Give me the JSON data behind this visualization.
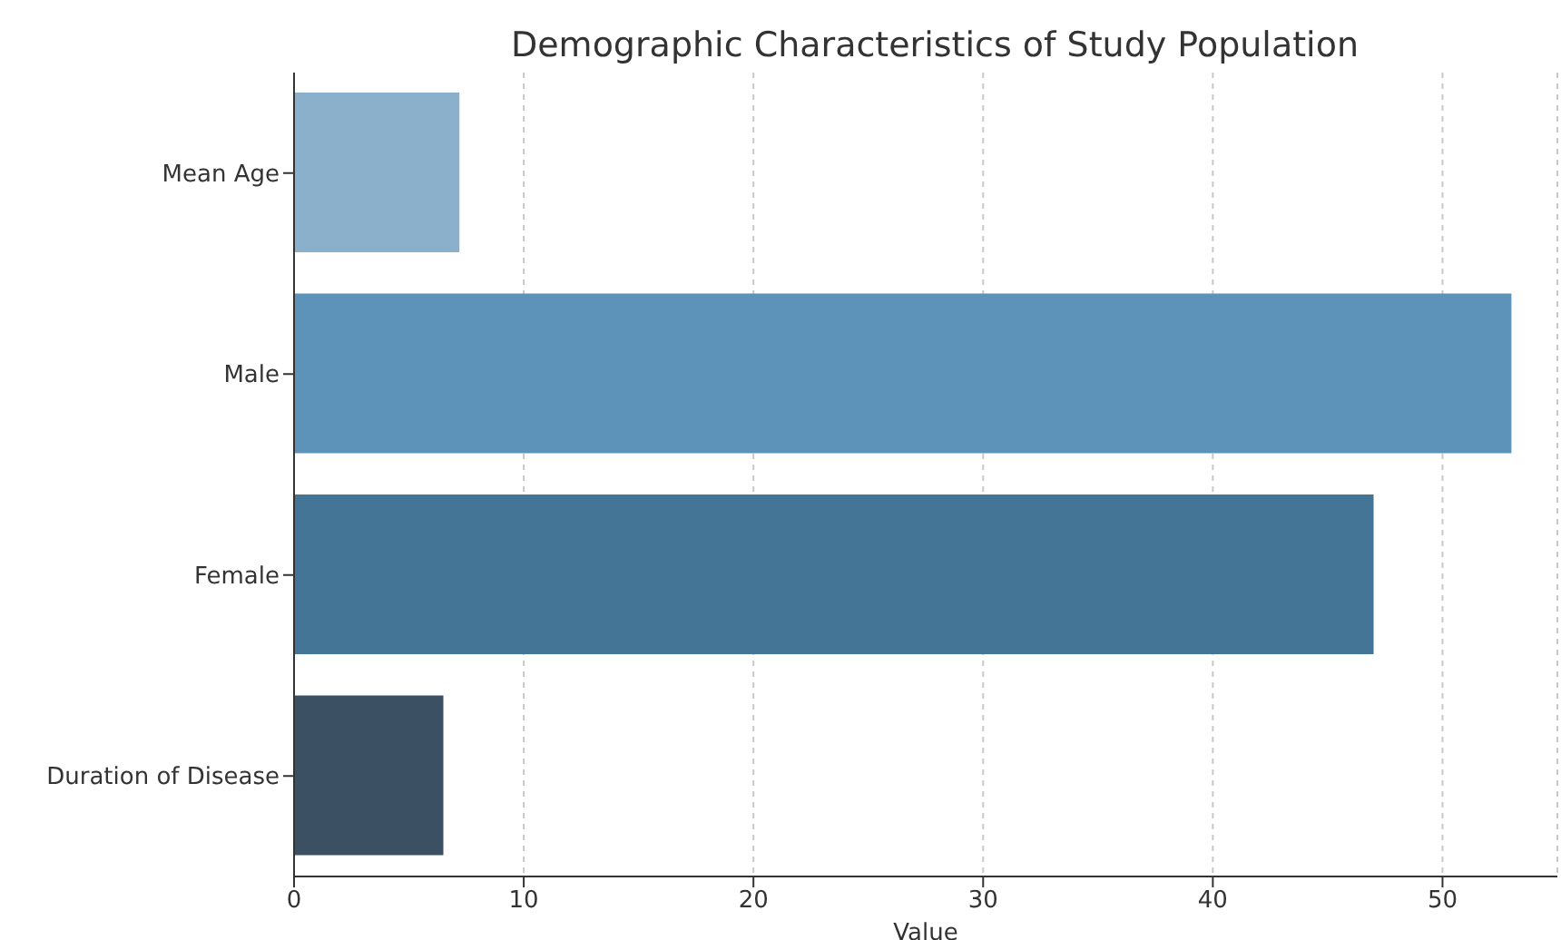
{
  "chart_data": {
    "type": "bar",
    "orientation": "horizontal",
    "title": "Demographic Characteristics of Study Population",
    "xlabel": "Value",
    "categories": [
      "Mean Age",
      "Male",
      "Female",
      "Duration of Disease"
    ],
    "values": [
      7.2,
      53,
      47,
      6.5
    ],
    "colors": [
      "#8ab0cc",
      "#5d93b9",
      "#447596",
      "#3c5064"
    ],
    "xlim": [
      0,
      55
    ],
    "xticks": [
      0,
      10,
      20,
      30,
      40,
      50
    ],
    "grid": "x"
  }
}
